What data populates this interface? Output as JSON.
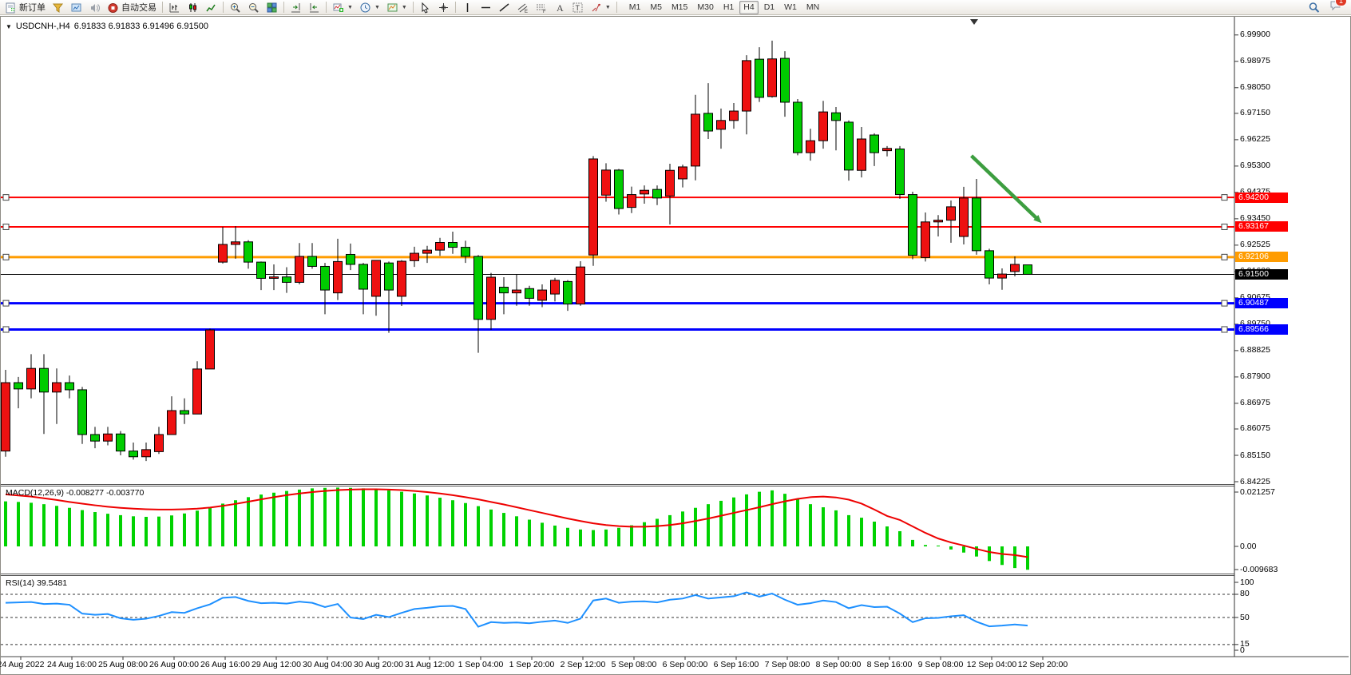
{
  "toolbar": {
    "buttons": [
      {
        "name": "new-order-button",
        "icon": "new-order",
        "label": "新订单"
      },
      {
        "name": "profiles-button",
        "icon": "profiles"
      },
      {
        "name": "market-watch-button",
        "icon": "market-watch"
      },
      {
        "name": "alerts-button",
        "icon": "sound"
      },
      {
        "name": "autotrading-button",
        "icon": "autotrade",
        "label": "自动交易"
      },
      {
        "sep": true
      },
      {
        "name": "bar-chart-button",
        "icon": "chart-bars"
      },
      {
        "name": "candle-chart-button",
        "icon": "chart-candles"
      },
      {
        "name": "line-chart-button",
        "icon": "chart-line"
      },
      {
        "sep": true
      },
      {
        "name": "zoom-in-button",
        "icon": "zoom-in"
      },
      {
        "name": "zoom-out-button",
        "icon": "zoom-out"
      },
      {
        "name": "tile-windows-button",
        "icon": "tile-windows"
      },
      {
        "sep": true
      },
      {
        "name": "auto-scroll-button",
        "icon": "auto-scroll"
      },
      {
        "name": "chart-shift-button",
        "icon": "chart-shift"
      },
      {
        "sep": true
      },
      {
        "name": "indicators-button",
        "icon": "indicators",
        "caret": true
      },
      {
        "name": "periods-button",
        "icon": "periods",
        "caret": true
      },
      {
        "name": "templates-button",
        "icon": "templates",
        "caret": true
      },
      {
        "sep": true
      },
      {
        "name": "cursor-button",
        "icon": "cursor"
      },
      {
        "name": "crosshair-button",
        "icon": "crosshair"
      },
      {
        "sep": true
      },
      {
        "name": "vertical-line-button",
        "icon": "vline"
      },
      {
        "name": "horizontal-line-button",
        "icon": "hline"
      },
      {
        "name": "trendline-button",
        "icon": "trendline"
      },
      {
        "name": "equidistant-channel-button",
        "icon": "channel"
      },
      {
        "name": "fibonacci-button",
        "icon": "fibo"
      },
      {
        "name": "text-button",
        "icon": "text"
      },
      {
        "name": "text-label-button",
        "icon": "text-label"
      },
      {
        "name": "arrows-button",
        "icon": "arrows",
        "caret": true
      },
      {
        "sep": true
      }
    ],
    "timeframes": [
      "M1",
      "M5",
      "M15",
      "M30",
      "H1",
      "H4",
      "D1",
      "W1",
      "MN"
    ],
    "active_timeframe": "H4",
    "chat_badge": "1"
  },
  "header": {
    "title": "USDCNH-,H4",
    "ohlc": "6.91833 6.91833 6.91496 6.91500"
  },
  "indicators": {
    "macd_label": "MACD(12,26,9) -0.008277 -0.003770",
    "rsi_label": "RSI(14) 39.5481"
  },
  "colors": {
    "up_candle": "#ee1111",
    "down_candle": "#00cc00",
    "macd_hist": "#00d200",
    "macd_signal": "#ee0000",
    "rsi_line": "#1e90ff",
    "arrow": "#3d9e40"
  },
  "chart_data": {
    "type": "candlestick",
    "symbol": "USDCNH-",
    "timeframe": "H4",
    "note": "red body = bullish, green body = bearish (Chinese convention)",
    "price_axis_values": [
      6.999,
      6.98975,
      6.9805,
      6.9715,
      6.96225,
      6.953,
      6.94375,
      6.9345,
      6.92525,
      6.916,
      6.90675,
      6.8975,
      6.88825,
      6.879,
      6.86975,
      6.86075,
      6.8515,
      6.84225
    ],
    "time_axis": [
      "24 Aug 2022",
      "24 Aug 16:00",
      "25 Aug 08:00",
      "26 Aug 00:00",
      "26 Aug 16:00",
      "29 Aug 12:00",
      "30 Aug 04:00",
      "30 Aug 20:00",
      "31 Aug 12:00",
      "1 Sep 04:00",
      "1 Sep 20:00",
      "2 Sep 12:00",
      "5 Sep 08:00",
      "6 Sep 00:00",
      "6 Sep 16:00",
      "7 Sep 08:00",
      "8 Sep 00:00",
      "8 Sep 16:00",
      "9 Sep 08:00",
      "12 Sep 04:00",
      "12 Sep 20:00"
    ],
    "candles": [
      [
        6.853,
        6.8815,
        6.851,
        6.877
      ],
      [
        6.877,
        6.879,
        6.868,
        6.8748
      ],
      [
        6.8748,
        6.887,
        6.8715,
        6.882
      ],
      [
        6.882,
        6.887,
        6.859,
        6.8737
      ],
      [
        6.8737,
        6.882,
        6.8625,
        6.877
      ],
      [
        6.877,
        6.8795,
        6.8715,
        6.8745
      ],
      [
        6.8745,
        6.8755,
        6.8555,
        6.8588
      ],
      [
        6.8588,
        6.8615,
        6.854,
        6.8565
      ],
      [
        6.8565,
        6.8615,
        6.855,
        6.859
      ],
      [
        6.859,
        6.86,
        6.8515,
        6.853
      ],
      [
        6.853,
        6.856,
        6.85,
        6.851
      ],
      [
        6.851,
        6.856,
        6.8495,
        6.8535
      ],
      [
        6.8528,
        6.8615,
        6.852,
        6.8588
      ],
      [
        6.8588,
        6.8722,
        6.8588,
        6.8672
      ],
      [
        6.8672,
        6.8715,
        6.8625,
        6.866
      ],
      [
        6.866,
        6.8845,
        6.866,
        6.8818
      ],
      [
        6.8818,
        6.896,
        6.8818,
        6.8955
      ],
      [
        6.9193,
        6.9317,
        6.9188,
        6.9255
      ],
      [
        6.9255,
        6.9319,
        6.9205,
        6.9264
      ],
      [
        6.9264,
        6.927,
        6.917,
        6.9193
      ],
      [
        6.9193,
        6.9195,
        6.9095,
        6.9136
      ],
      [
        6.9136,
        6.9185,
        6.9095,
        6.9141
      ],
      [
        6.9141,
        6.9175,
        6.9085,
        6.9122
      ],
      [
        6.9122,
        6.926,
        6.9115,
        6.9213
      ],
      [
        6.9213,
        6.926,
        6.917,
        6.9178
      ],
      [
        6.9178,
        6.919,
        6.901,
        6.9095
      ],
      [
        6.9085,
        6.9275,
        6.906,
        6.9195
      ],
      [
        6.922,
        6.9258,
        6.9165,
        6.9185
      ],
      [
        6.9185,
        6.919,
        6.901,
        6.9098
      ],
      [
        6.9073,
        6.92,
        6.9005,
        6.9199
      ],
      [
        6.919,
        6.9195,
        6.8945,
        6.9095
      ],
      [
        6.9073,
        6.92,
        6.9039,
        6.9196
      ],
      [
        6.9198,
        6.9247,
        6.9176,
        6.9224
      ],
      [
        6.9224,
        6.925,
        6.919,
        6.9235
      ],
      [
        6.9235,
        6.9278,
        6.9215,
        6.9262
      ],
      [
        6.9262,
        6.93,
        6.9222,
        6.9245
      ],
      [
        6.9245,
        6.9268,
        6.919,
        6.9213
      ],
      [
        6.9213,
        6.9218,
        6.8875,
        6.8992
      ],
      [
        6.8992,
        6.9155,
        6.8955,
        6.914
      ],
      [
        6.9105,
        6.914,
        6.901,
        6.9085
      ],
      [
        6.9085,
        6.915,
        6.904,
        6.9095
      ],
      [
        6.91,
        6.911,
        6.904,
        6.9066
      ],
      [
        6.9059,
        6.9115,
        6.9035,
        6.9095
      ],
      [
        6.9081,
        6.9138,
        6.9055,
        6.9129
      ],
      [
        6.9125,
        6.913,
        6.9022,
        6.9046
      ],
      [
        6.9046,
        6.9196,
        6.904,
        6.9176
      ],
      [
        6.9218,
        6.9565,
        6.918,
        6.9555
      ],
      [
        6.9428,
        6.954,
        6.9405,
        6.9516
      ],
      [
        6.9516,
        6.952,
        6.936,
        6.9381
      ],
      [
        6.9385,
        6.9458,
        6.9365,
        6.943
      ],
      [
        6.9432,
        6.9462,
        6.9398,
        6.9445
      ],
      [
        6.9448,
        6.9462,
        6.9393,
        6.9418
      ],
      [
        6.9425,
        6.9538,
        6.9325,
        6.9515
      ],
      [
        6.9485,
        6.9535,
        6.9455,
        6.9527
      ],
      [
        6.953,
        6.978,
        6.948,
        6.9712
      ],
      [
        6.9715,
        6.9821,
        6.9625,
        6.9653
      ],
      [
        6.9659,
        6.9732,
        6.9591,
        6.969
      ],
      [
        6.969,
        6.9751,
        6.9661,
        6.9723
      ],
      [
        6.9723,
        6.9919,
        6.9641,
        6.99
      ],
      [
        6.9905,
        6.9947,
        6.9755,
        6.9771
      ],
      [
        6.9774,
        6.997,
        6.977,
        6.9906
      ],
      [
        6.9908,
        6.9933,
        6.9703,
        6.9754
      ],
      [
        6.9754,
        6.9765,
        6.9568,
        6.9577
      ],
      [
        6.9577,
        6.9661,
        6.9549,
        6.9619
      ],
      [
        6.9619,
        6.9759,
        6.9591,
        6.972
      ],
      [
        6.9717,
        6.9737,
        6.9585,
        6.969
      ],
      [
        6.9684,
        6.969,
        6.9479,
        6.9516
      ],
      [
        6.9515,
        6.9667,
        6.949,
        6.9625
      ],
      [
        6.9639,
        6.9645,
        6.953,
        6.9577
      ],
      [
        6.9584,
        6.96,
        6.9564,
        6.9592
      ],
      [
        6.959,
        6.96,
        6.9415,
        6.943
      ],
      [
        6.943,
        6.944,
        6.9203,
        6.9217
      ],
      [
        6.9209,
        6.9367,
        6.9195,
        6.9334
      ],
      [
        6.9334,
        6.9358,
        6.9283,
        6.934
      ],
      [
        6.934,
        6.9409,
        6.9261,
        6.9387
      ],
      [
        6.9283,
        6.9457,
        6.9255,
        6.9418
      ],
      [
        6.9418,
        6.9485,
        6.9219,
        6.9233
      ],
      [
        6.9233,
        6.924,
        6.9115,
        6.9137
      ],
      [
        6.9137,
        6.9171,
        6.9096,
        6.9151
      ],
      [
        6.916,
        6.9213,
        6.9143,
        6.9185
      ],
      [
        6.91833,
        6.91833,
        6.91496,
        6.915
      ]
    ],
    "horizontal_lines": [
      {
        "price": 6.942,
        "color": "#ff0000",
        "width": 2,
        "handles": true,
        "badge": "#ff0000"
      },
      {
        "price": 6.93167,
        "color": "#ff0000",
        "width": 2,
        "handles": true,
        "badge": "#ff0000"
      },
      {
        "price": 6.92106,
        "color": "#ff9c00",
        "width": 3,
        "handles": true,
        "badge": "#ff9c00"
      },
      {
        "price": 6.915,
        "color": "#000000",
        "width": 1,
        "handles": false,
        "badge": "#000000"
      },
      {
        "price": 6.90487,
        "color": "#0000ff",
        "width": 3,
        "handles": true,
        "badge": "#0000ff"
      },
      {
        "price": 6.89566,
        "color": "#0000ff",
        "width": 3,
        "handles": true,
        "badge": "#0000ff"
      }
    ],
    "trend_arrow": {
      "from_bar": 75.6,
      "from_price": 6.9566,
      "to_bar": 81.1,
      "to_price": 6.933
    },
    "macd": {
      "label": "MACD(12,26,9)",
      "current_values": "-0.008277 -0.003770",
      "axis_values": [
        0.021257,
        0,
        -0.009683
      ],
      "axis_labels": [
        "0.021257",
        "0.00",
        "-0.009683"
      ],
      "histogram": [
        0.016,
        0.0158,
        0.0155,
        0.015,
        0.0144,
        0.0137,
        0.0129,
        0.0122,
        0.0116,
        0.0111,
        0.0107,
        0.0105,
        0.0106,
        0.011,
        0.0117,
        0.0127,
        0.0139,
        0.0152,
        0.0164,
        0.0175,
        0.0184,
        0.0191,
        0.0197,
        0.0202,
        0.0206,
        0.0208,
        0.0209,
        0.0208,
        0.0206,
        0.0203,
        0.0199,
        0.0194,
        0.0188,
        0.0181,
        0.0173,
        0.0164,
        0.0154,
        0.0143,
        0.0131,
        0.0119,
        0.0107,
        0.0095,
        0.0084,
        0.0074,
        0.0066,
        0.006,
        0.0058,
        0.006,
        0.0066,
        0.0075,
        0.0086,
        0.0098,
        0.0111,
        0.0124,
        0.0137,
        0.015,
        0.0162,
        0.0174,
        0.0185,
        0.0194,
        0.0199,
        0.0187,
        0.0168,
        0.015,
        0.0139,
        0.0128,
        0.0111,
        0.0102,
        0.0088,
        0.0071,
        0.0054,
        0.0023,
        0.0005,
        0.0003,
        -0.0011,
        -0.0022,
        -0.0036,
        -0.0052,
        -0.0066,
        -0.0077,
        -0.0083
      ],
      "signal": [
        0.0185,
        0.0181,
        0.0177,
        0.0171,
        0.0165,
        0.0158,
        0.0152,
        0.0146,
        0.0141,
        0.0137,
        0.0134,
        0.0132,
        0.0131,
        0.0131,
        0.0132,
        0.0134,
        0.0138,
        0.0144,
        0.0151,
        0.0159,
        0.0167,
        0.0175,
        0.0182,
        0.0188,
        0.0193,
        0.0197,
        0.02,
        0.0202,
        0.0203,
        0.0203,
        0.0202,
        0.02,
        0.0197,
        0.0193,
        0.0188,
        0.0182,
        0.0175,
        0.0167,
        0.0158,
        0.0149,
        0.0139,
        0.0129,
        0.0119,
        0.0109,
        0.0099,
        0.009,
        0.0082,
        0.0076,
        0.0072,
        0.007,
        0.007,
        0.0072,
        0.0076,
        0.0082,
        0.009,
        0.0099,
        0.0109,
        0.0119,
        0.0129,
        0.0139,
        0.015,
        0.016,
        0.0169,
        0.0175,
        0.0177,
        0.0174,
        0.0166,
        0.0152,
        0.0131,
        0.0108,
        0.0094,
        0.0071,
        0.0048,
        0.0028,
        0.0014,
        0.0003,
        -0.0009,
        -0.002,
        -0.0027,
        -0.0031,
        -0.0038
      ]
    },
    "rsi": {
      "label": "RSI(14)",
      "current_value": "39.5481",
      "axis_values": [
        100,
        80,
        50,
        15,
        0
      ],
      "levels": [
        80,
        50,
        15
      ],
      "values": [
        69,
        69.5,
        70,
        67.5,
        68,
        66.5,
        55,
        53.5,
        54.5,
        49,
        47,
        48.5,
        52,
        57,
        56,
        62,
        67,
        75.5,
        76.5,
        71.5,
        68.5,
        69,
        68,
        70.5,
        69,
        63.5,
        67.5,
        50,
        48,
        53.5,
        50.5,
        56,
        61,
        62.5,
        64.5,
        65,
        61,
        38,
        44,
        43,
        43.5,
        42.5,
        44.5,
        46,
        43,
        48.5,
        72,
        74.5,
        69,
        70.5,
        71,
        69.5,
        73,
        74.5,
        79,
        74.5,
        76,
        77.5,
        82.5,
        77,
        81,
        73,
        66.5,
        68.5,
        72,
        70,
        62,
        66,
        63.5,
        64,
        55,
        44,
        49,
        49.5,
        51.5,
        53,
        44.5,
        38.5,
        39.5,
        41,
        39.5481
      ]
    }
  }
}
